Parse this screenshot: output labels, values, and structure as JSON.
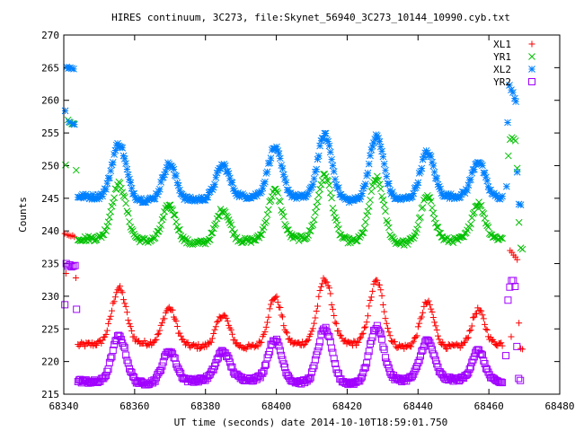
{
  "chart_data": {
    "type": "scatter",
    "title": "HIRES continuum, 3C273, file:Skynet_56940_3C273_10144_10990.cyb.txt",
    "xlabel": "UT time (seconds) date 2014-10-10T18:59:01.750",
    "ylabel": "Counts",
    "xlim": [
      68340,
      68480
    ],
    "ylim": [
      215,
      270
    ],
    "xticks": [
      68340,
      68360,
      68380,
      68400,
      68420,
      68440,
      68460,
      68480
    ],
    "yticks": [
      215,
      220,
      225,
      230,
      235,
      240,
      245,
      250,
      255,
      260,
      265,
      270
    ],
    "legend_position": "top-right",
    "grid": false,
    "series": [
      {
        "name": "XL1",
        "marker": "plus",
        "color": "#ff0000",
        "baseline": 222.5,
        "wobble": 0.8,
        "peak_scale": 1.0,
        "start_points": [
          [
            68340.3,
            239.6
          ],
          [
            68340.6,
            233.5
          ],
          [
            68341.0,
            239.4
          ],
          [
            68341.5,
            239.3
          ],
          [
            68342.0,
            239.2
          ],
          [
            68342.5,
            239.3
          ],
          [
            68343.0,
            239.1
          ],
          [
            68343.4,
            232.8
          ]
        ],
        "end_points": [
          [
            68466.0,
            237.0
          ],
          [
            68466.5,
            236.7
          ],
          [
            68467.0,
            236.3
          ],
          [
            68467.5,
            236.0
          ],
          [
            68468.0,
            235.6
          ],
          [
            68468.5,
            225.9
          ],
          [
            68469.0,
            222.0
          ],
          [
            68469.5,
            221.9
          ],
          [
            68466.3,
            223.8
          ]
        ]
      },
      {
        "name": "YR1",
        "marker": "cross",
        "color": "#00c000",
        "baseline": 238.5,
        "wobble": 0.8,
        "peak_scale": 1.0,
        "start_points": [
          [
            68340.5,
            250.1
          ],
          [
            68341.2,
            257.0
          ],
          [
            68341.8,
            256.6
          ],
          [
            68342.3,
            256.4
          ],
          [
            68342.8,
            256.4
          ],
          [
            68343.5,
            249.3
          ]
        ],
        "end_points": [
          [
            68465.5,
            251.5
          ],
          [
            68466.0,
            254.0
          ],
          [
            68466.5,
            254.3
          ],
          [
            68467.0,
            254.1
          ],
          [
            68467.5,
            253.8
          ],
          [
            68468.0,
            249.6
          ],
          [
            68468.5,
            241.3
          ],
          [
            68469.0,
            237.4
          ],
          [
            68469.5,
            237.2
          ]
        ]
      },
      {
        "name": "XL2",
        "marker": "asterisk",
        "color": "#0080ff",
        "baseline": 245.0,
        "wobble": 0.8,
        "peak_scale": 1.0,
        "start_points": [
          [
            68340.4,
            258.4
          ],
          [
            68340.8,
            265.1
          ],
          [
            68341.3,
            264.9
          ],
          [
            68341.8,
            265.0
          ],
          [
            68342.3,
            264.9
          ],
          [
            68342.8,
            264.8
          ],
          [
            68341.5,
            256.7
          ],
          [
            68342.5,
            256.4
          ],
          [
            68343.0,
            256.3
          ]
        ],
        "end_points": [
          [
            68465.3,
            256.6
          ],
          [
            68465.8,
            262.3
          ],
          [
            68466.3,
            261.6
          ],
          [
            68466.8,
            261.2
          ],
          [
            68467.3,
            260.3
          ],
          [
            68467.6,
            259.8
          ],
          [
            68468.0,
            249.0
          ],
          [
            68468.5,
            244.1
          ],
          [
            68469.0,
            244.0
          ],
          [
            68465.0,
            246.8
          ]
        ]
      },
      {
        "name": "YR2",
        "marker": "box",
        "color": "#a000ff",
        "baseline": 217.0,
        "wobble": 0.6,
        "peak_scale": 0.85,
        "start_points": [
          [
            68340.3,
            228.7
          ],
          [
            68340.7,
            235.0
          ],
          [
            68341.2,
            234.6
          ],
          [
            68341.7,
            234.8
          ],
          [
            68342.2,
            234.5
          ],
          [
            68342.7,
            234.6
          ],
          [
            68343.2,
            234.7
          ],
          [
            68343.6,
            228.0
          ]
        ],
        "end_points": [
          [
            68464.8,
            220.9
          ],
          [
            68465.4,
            229.4
          ],
          [
            68465.9,
            231.4
          ],
          [
            68466.4,
            232.4
          ],
          [
            68466.9,
            232.4
          ],
          [
            68467.4,
            231.5
          ],
          [
            68467.9,
            222.3
          ],
          [
            68468.4,
            217.4
          ],
          [
            68468.9,
            217.1
          ]
        ]
      }
    ],
    "main_range": [
      68344,
      68464
    ],
    "peaks": [
      {
        "x": 68355.6,
        "height": 8.4,
        "width": 2.0
      },
      {
        "x": 68369.8,
        "height": 5.6,
        "width": 1.9
      },
      {
        "x": 68384.9,
        "height": 5.0,
        "width": 1.9
      },
      {
        "x": 68399.6,
        "height": 7.4,
        "width": 1.9
      },
      {
        "x": 68413.7,
        "height": 9.8,
        "width": 2.0
      },
      {
        "x": 68428.3,
        "height": 9.8,
        "width": 2.0
      },
      {
        "x": 68442.6,
        "height": 6.9,
        "width": 1.9
      },
      {
        "x": 68457.0,
        "height": 5.4,
        "width": 1.8
      }
    ]
  }
}
